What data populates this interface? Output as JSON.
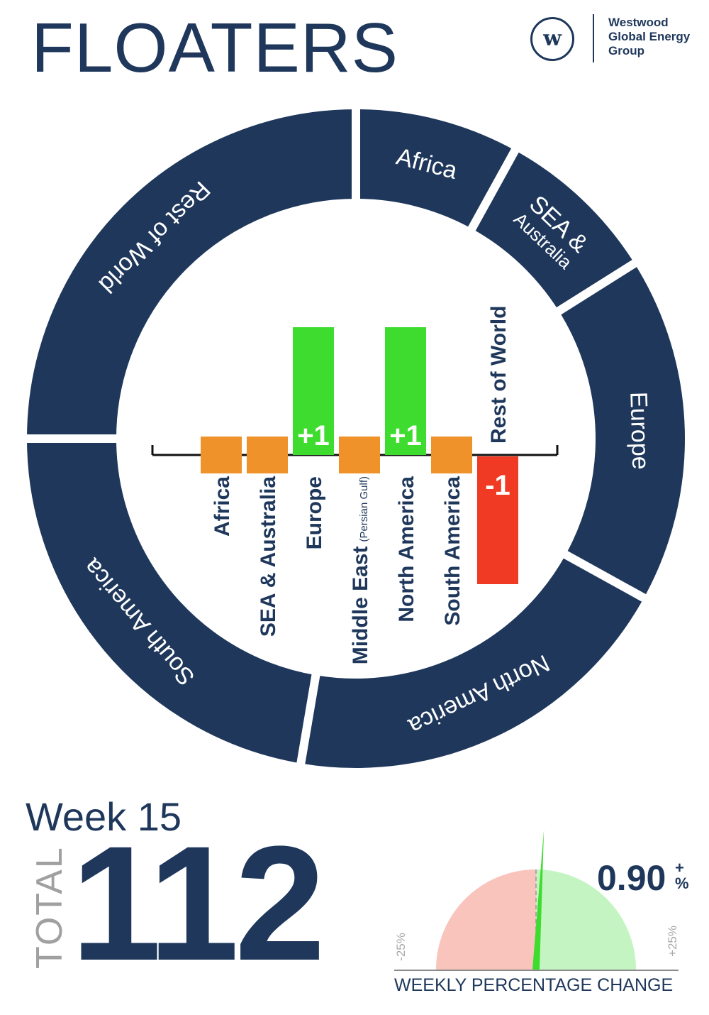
{
  "header": {
    "title": "FLOATERS",
    "logo_letter": "w",
    "company_lines": [
      "Westwood",
      "Global Energy",
      "Group"
    ]
  },
  "colors": {
    "navy": "#1e375b",
    "increase": "#3ddc2e",
    "decrease": "#f03a24",
    "no_change": "#f0922a",
    "gauge_negative": "#f9c4bc",
    "gauge_positive": "#c4f4c2"
  },
  "chart_data": [
    {
      "type": "donut",
      "title": "",
      "categories": [
        "Africa",
        "SEA & Australia",
        "Europe",
        "North America",
        "South America",
        "Rest of World"
      ],
      "values": [
        9,
        9,
        19,
        22,
        25,
        28
      ],
      "labels": [
        "Africa",
        "SEA &\nAustralia",
        "Europe",
        "North America",
        "South America",
        "Rest of World"
      ]
    },
    {
      "type": "bar",
      "title": "",
      "categories": [
        "Africa",
        "SEA & Australia",
        "Europe",
        "Middle East",
        "North America",
        "South America",
        "Rest of World"
      ],
      "category_notes": [
        "",
        "",
        "",
        "(Persian Gulf)",
        "",
        "",
        ""
      ],
      "values": [
        0,
        0,
        1,
        0,
        1,
        0,
        -1
      ],
      "data_labels": [
        "",
        "",
        "+1",
        "",
        "+1",
        "",
        "-1"
      ],
      "ylim": [
        -1,
        1
      ]
    },
    {
      "type": "gauge",
      "value": 0.9,
      "range": [
        -25,
        25
      ],
      "min_label": "-25%",
      "max_label": "+25%"
    }
  ],
  "summary": {
    "week": "Week 15",
    "total_label": "TOTAL",
    "total_value": "112",
    "pct_change": "0.90",
    "pct_sign": "+",
    "pct_unit": "%",
    "pct_caption": "WEEKLY PERCENTAGE CHANGE"
  }
}
